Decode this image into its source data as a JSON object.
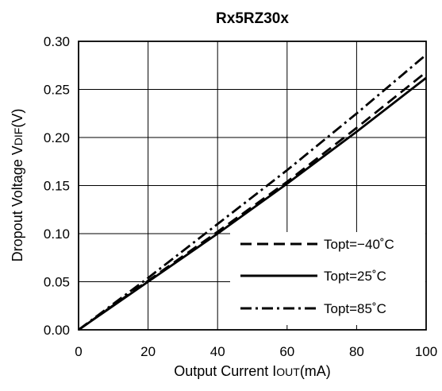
{
  "chart_data": {
    "type": "line",
    "title": "Rx5RZ30x",
    "xlabel": {
      "main": "Output Current I",
      "sub": "OUT",
      "suffix": "(mA)"
    },
    "ylabel": {
      "main": "Dropout Voltage V",
      "sub": "DIF",
      "suffix": "(V)"
    },
    "xlim": [
      0,
      100
    ],
    "ylim": [
      0,
      0.3
    ],
    "x_ticks": [
      0,
      20,
      40,
      60,
      80,
      100
    ],
    "y_ticks": [
      0.0,
      0.05,
      0.1,
      0.15,
      0.2,
      0.25,
      0.3
    ],
    "x_tick_labels": [
      "0",
      "20",
      "40",
      "60",
      "80",
      "100"
    ],
    "y_tick_labels": [
      "0.00",
      "0.05",
      "0.10",
      "0.15",
      "0.20",
      "0.25",
      "0.30"
    ],
    "grid": true,
    "legend_position": "bottom-right",
    "series": [
      {
        "name": "Topt=−40˚C",
        "style": "dashed",
        "x": [
          0,
          20,
          40,
          60,
          80,
          100
        ],
        "y": [
          0,
          0.051,
          0.102,
          0.154,
          0.21,
          0.268
        ]
      },
      {
        "name": "Topt=25˚C",
        "style": "solid",
        "x": [
          0,
          20,
          40,
          60,
          80,
          100
        ],
        "y": [
          0,
          0.05,
          0.1,
          0.152,
          0.206,
          0.262
        ]
      },
      {
        "name": "Topt=85˚C",
        "style": "dashdot",
        "x": [
          0,
          20,
          40,
          60,
          80,
          100
        ],
        "y": [
          0,
          0.054,
          0.11,
          0.166,
          0.225,
          0.286
        ]
      }
    ]
  }
}
